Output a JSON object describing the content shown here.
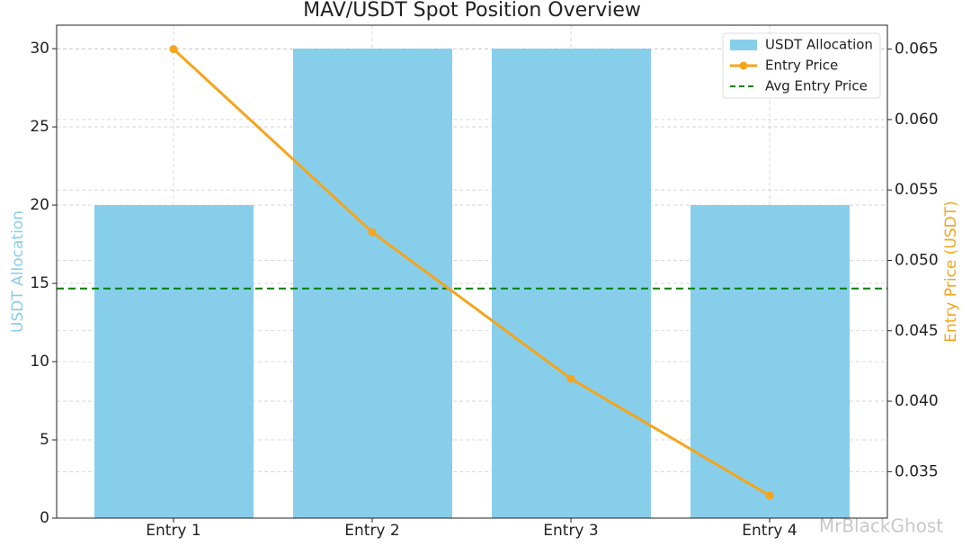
{
  "chart_data": {
    "type": "bar",
    "title": "MAV/USDT Spot Position Overview",
    "y_label": "USDT Allocation",
    "y2_label": "Entry Price (USDT)",
    "categories": [
      "Entry 1",
      "Entry 2",
      "Entry 3",
      "Entry 4"
    ],
    "series": [
      {
        "name": "USDT Allocation",
        "type": "bar",
        "color": "#87ceeb",
        "values": [
          20,
          30,
          30,
          20
        ]
      },
      {
        "name": "Entry Price",
        "type": "line",
        "axis": "y2",
        "color": "#f4a51c",
        "values": [
          0.065,
          0.052,
          0.0416,
          0.0333
        ]
      }
    ],
    "reference_line": {
      "name": "Avg Entry Price",
      "axis": "y2",
      "color": "#008000",
      "value": 0.048
    },
    "ylim": [
      0,
      31.5
    ],
    "yticks": [
      0,
      5,
      10,
      15,
      20,
      25,
      30
    ],
    "y2lim": [
      0.0317,
      0.0667
    ],
    "y2ticks": [
      0.035,
      {
        "value": 0.04,
        "label": "0.040"
      },
      0.045,
      {
        "value": 0.05,
        "label": "0.050"
      },
      0.055,
      {
        "value": 0.06,
        "label": "0.060"
      },
      0.065
    ],
    "grid": true,
    "legend": "upper right",
    "watermark": "MrBlackGhost"
  }
}
